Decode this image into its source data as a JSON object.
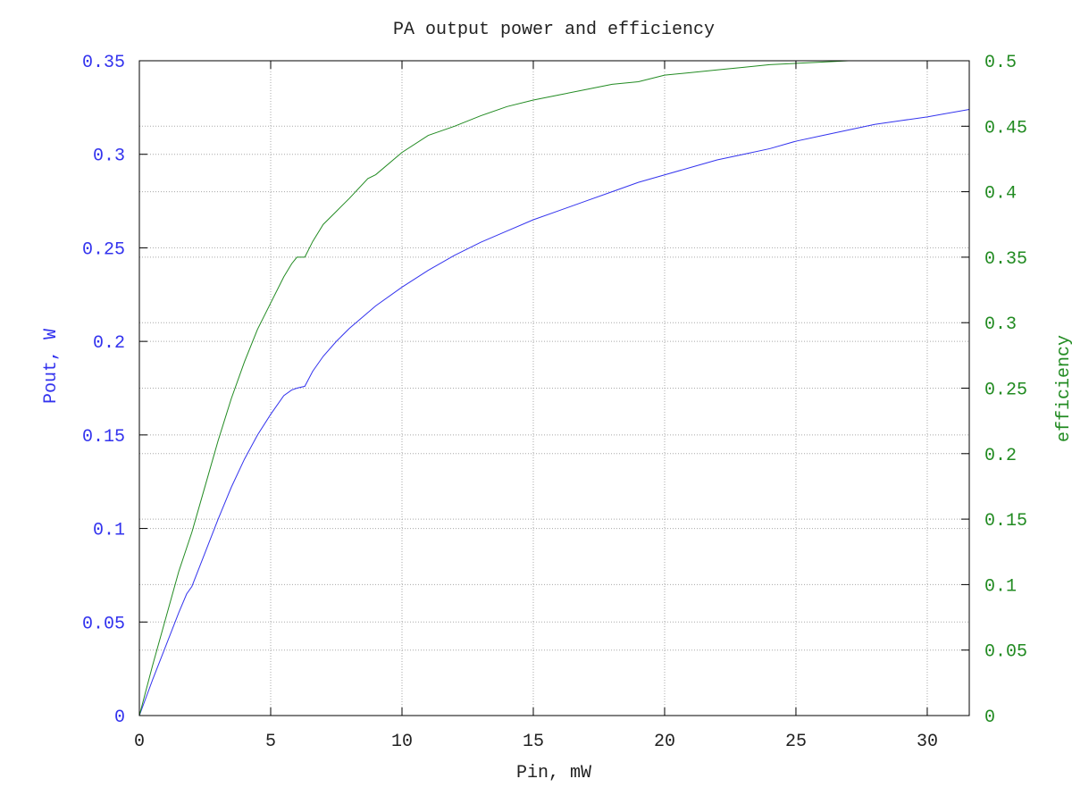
{
  "chart_data": {
    "type": "line",
    "title": "PA output power and efficiency",
    "xlabel": "Pin, mW",
    "ylabel_left": "Pout, W",
    "ylabel_right": "efficiency",
    "xlim": [
      0,
      31.6
    ],
    "ylim_left": [
      0,
      0.35
    ],
    "ylim_right": [
      0,
      0.5
    ],
    "x_ticks": [
      "0",
      "5",
      "10",
      "15",
      "20",
      "25",
      "30"
    ],
    "y_left_ticks": [
      "0",
      "0.05",
      "0.1",
      "0.15",
      "0.2",
      "0.25",
      "0.3",
      "0.35"
    ],
    "y_right_ticks": [
      "0",
      "0.05",
      "0.1",
      "0.15",
      "0.2",
      "0.25",
      "0.3",
      "0.35",
      "0.4",
      "0.45",
      "0.5"
    ],
    "grid": true,
    "colors": {
      "left_axis": "#3333ee",
      "right_axis": "#228b22",
      "pout": "#3333ee",
      "efficiency": "#228b22"
    },
    "series": [
      {
        "axis": "left",
        "x": [
          0,
          0.5,
          1,
          1.5,
          1.8,
          2,
          2.5,
          3,
          3.5,
          4,
          4.5,
          5,
          5.5,
          5.8,
          6,
          6.3,
          6.6,
          7,
          7.5,
          8,
          9,
          10,
          11,
          12,
          13,
          14,
          15,
          16,
          17,
          18,
          19,
          20,
          21,
          22,
          23,
          24,
          25,
          26,
          27,
          28,
          29,
          30,
          31.6
        ],
        "y": [
          0,
          0.019,
          0.037,
          0.055,
          0.065,
          0.069,
          0.087,
          0.105,
          0.122,
          0.137,
          0.15,
          0.161,
          0.171,
          0.174,
          0.175,
          0.176,
          0.184,
          0.192,
          0.2,
          0.207,
          0.219,
          0.229,
          0.238,
          0.246,
          0.253,
          0.259,
          0.265,
          0.27,
          0.275,
          0.28,
          0.285,
          0.289,
          0.293,
          0.297,
          0.3,
          0.303,
          0.307,
          0.31,
          0.313,
          0.316,
          0.318,
          0.32,
          0.324
        ]
      },
      {
        "axis": "right",
        "x": [
          0,
          0.5,
          1,
          1.5,
          1.8,
          2,
          2.5,
          3,
          3.5,
          4,
          4.5,
          5,
          5.5,
          5.8,
          6,
          6.3,
          6.6,
          7,
          7.5,
          8,
          8.7,
          9,
          10,
          11,
          12,
          13,
          14,
          15,
          16,
          17,
          18,
          19,
          20,
          21,
          22,
          23,
          24,
          25,
          26,
          27,
          28,
          29,
          30,
          31.6
        ],
        "y": [
          0,
          0.038,
          0.074,
          0.11,
          0.128,
          0.14,
          0.175,
          0.21,
          0.242,
          0.27,
          0.295,
          0.315,
          0.335,
          0.345,
          0.35,
          0.35,
          0.362,
          0.375,
          0.385,
          0.395,
          0.41,
          0.413,
          0.43,
          0.443,
          0.45,
          0.458,
          0.465,
          0.47,
          0.474,
          0.478,
          0.482,
          0.484,
          0.489,
          0.491,
          0.493,
          0.495,
          0.497,
          0.498,
          0.499,
          0.5,
          0.5,
          0.5,
          0.5,
          0.5
        ]
      }
    ]
  }
}
